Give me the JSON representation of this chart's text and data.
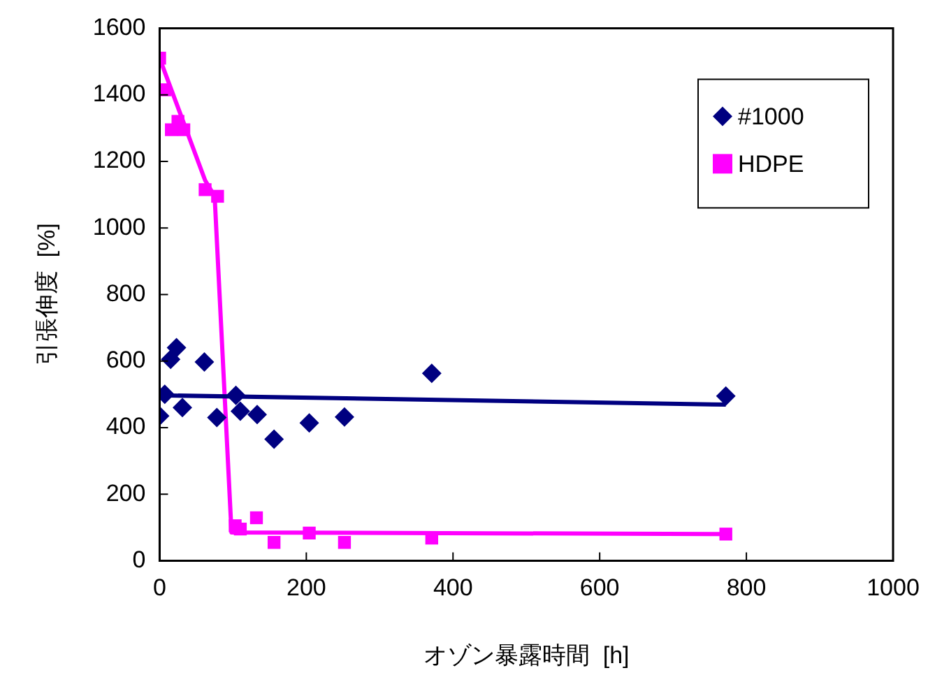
{
  "chart_data": {
    "type": "scatter",
    "xlabel": "オゾン暴露時間  [h]",
    "ylabel": "引張伸度  [%]",
    "xlim": [
      0,
      1000
    ],
    "xticks": [
      0,
      200,
      400,
      600,
      800,
      1000
    ],
    "ylim": [
      0,
      1600
    ],
    "yticks": [
      0,
      200,
      400,
      600,
      800,
      1000,
      1200,
      1400,
      1600
    ],
    "grid": false,
    "legend": "top right",
    "series": [
      {
        "name": "#1000",
        "color": "#000080",
        "marker": "diamond",
        "x": [
          0,
          7,
          15,
          23,
          31,
          61,
          78,
          104,
          110,
          133,
          156,
          204,
          252,
          371,
          772
        ],
        "values": [
          435,
          500,
          605,
          640,
          460,
          597,
          430,
          497,
          449,
          439,
          365,
          414,
          432,
          563,
          495
        ]
      },
      {
        "name": "HDPE",
        "color": "#ff00ff",
        "marker": "square",
        "x": [
          0,
          7,
          16,
          25,
          33,
          62,
          79,
          103,
          110,
          132,
          156,
          204,
          252,
          371,
          772
        ],
        "values": [
          1510,
          1415,
          1295,
          1320,
          1295,
          1115,
          1095,
          105,
          95,
          129,
          55,
          83,
          55,
          68,
          80
        ]
      },
      {
        "type": "line",
        "color": "#000080",
        "marker": "none",
        "x": [
          0,
          772
        ],
        "values": [
          497,
          469
        ]
      },
      {
        "type": "line",
        "color": "#ff00ff",
        "marker": "none",
        "x": [
          0,
          62,
          75,
          98,
          772
        ],
        "values": [
          1510,
          1143,
          1095,
          85,
          80
        ]
      }
    ]
  }
}
